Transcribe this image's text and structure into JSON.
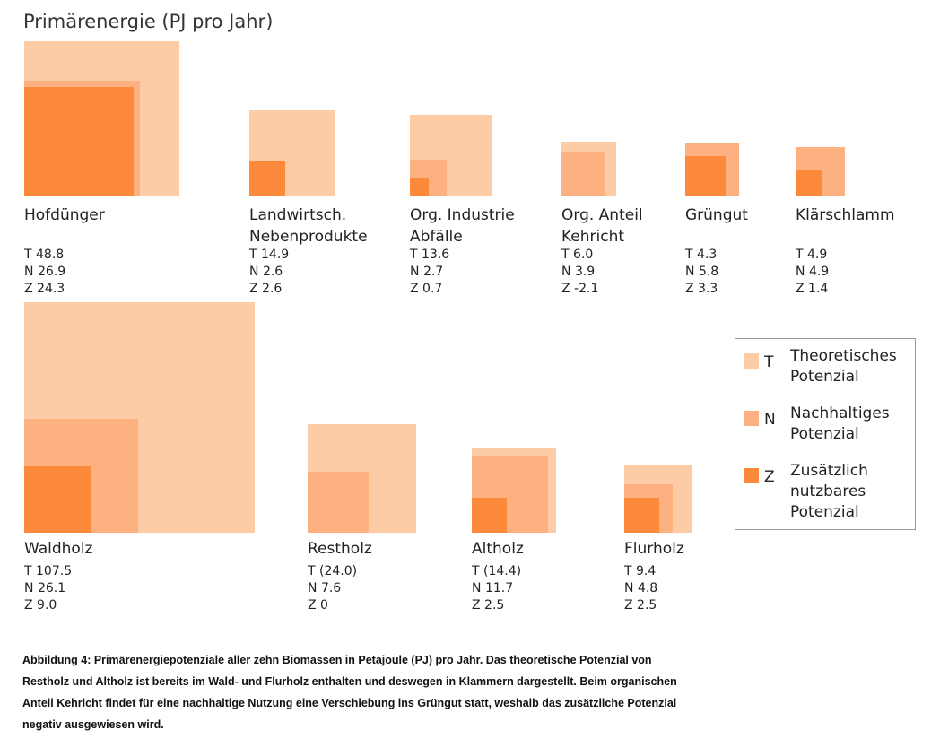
{
  "chart_data": {
    "type": "nested-squares",
    "title": "Primärenergie (PJ pro Jahr)",
    "categories": [
      "Hofdünger",
      "Landwirtsch. Nebenprodukte",
      "Org. Industrie Abfälle",
      "Org. Anteil Kehricht",
      "Grüngut",
      "Klärschlamm",
      "Waldholz",
      "Restholz",
      "Altholz",
      "Flurholz"
    ],
    "series": [
      {
        "name": "T",
        "description": "Theoretisches Potenzial",
        "color": "#fdcba6",
        "values": [
          48.8,
          14.9,
          13.6,
          6.0,
          4.3,
          4.9,
          107.5,
          24.0,
          14.4,
          9.4
        ],
        "value_labels": [
          "48.8",
          "14.9",
          "13.6",
          "6.0",
          "4.3",
          "4.9",
          "107.5",
          "(24.0)",
          "(14.4)",
          "9.4"
        ]
      },
      {
        "name": "N",
        "description": "Nachhaltiges Potenzial",
        "color": "#fdb080",
        "values": [
          26.9,
          2.6,
          2.7,
          3.9,
          5.8,
          4.9,
          26.1,
          7.6,
          11.7,
          4.8
        ],
        "value_labels": [
          "26.9",
          "2.6",
          "2.7",
          "3.9",
          "5.8",
          "4.9",
          "26.1",
          "7.6",
          "11.7",
          "4.8"
        ]
      },
      {
        "name": "Z",
        "description": "Zusätzlich nutzbares Potenzial",
        "color": "#fd8a3a",
        "values": [
          24.3,
          2.6,
          0.7,
          -2.1,
          3.3,
          1.4,
          9.0,
          0,
          2.5,
          2.5
        ],
        "value_labels": [
          "24.3",
          "2.6",
          "0.7",
          "-2.1",
          "3.3",
          "1.4",
          "9.0",
          "0",
          "2.5",
          "2.5"
        ]
      }
    ],
    "caption": [
      "Abbildung 4: Primärenergiepotenziale aller zehn Biomassen in Petajoule (PJ) pro Jahr. Das theoretische Potenzial von",
      "Restholz und Altholz ist bereits im Wald- und Flurholz enthalten und deswegen in Klammern dargestellt. Beim organischen",
      "Anteil Kehricht findet für eine nachhaltige Nutzung eine Verschiebung ins Grüngut statt, weshalb das zusätzliche Potenzial",
      "negativ ausgewiesen wird."
    ]
  }
}
